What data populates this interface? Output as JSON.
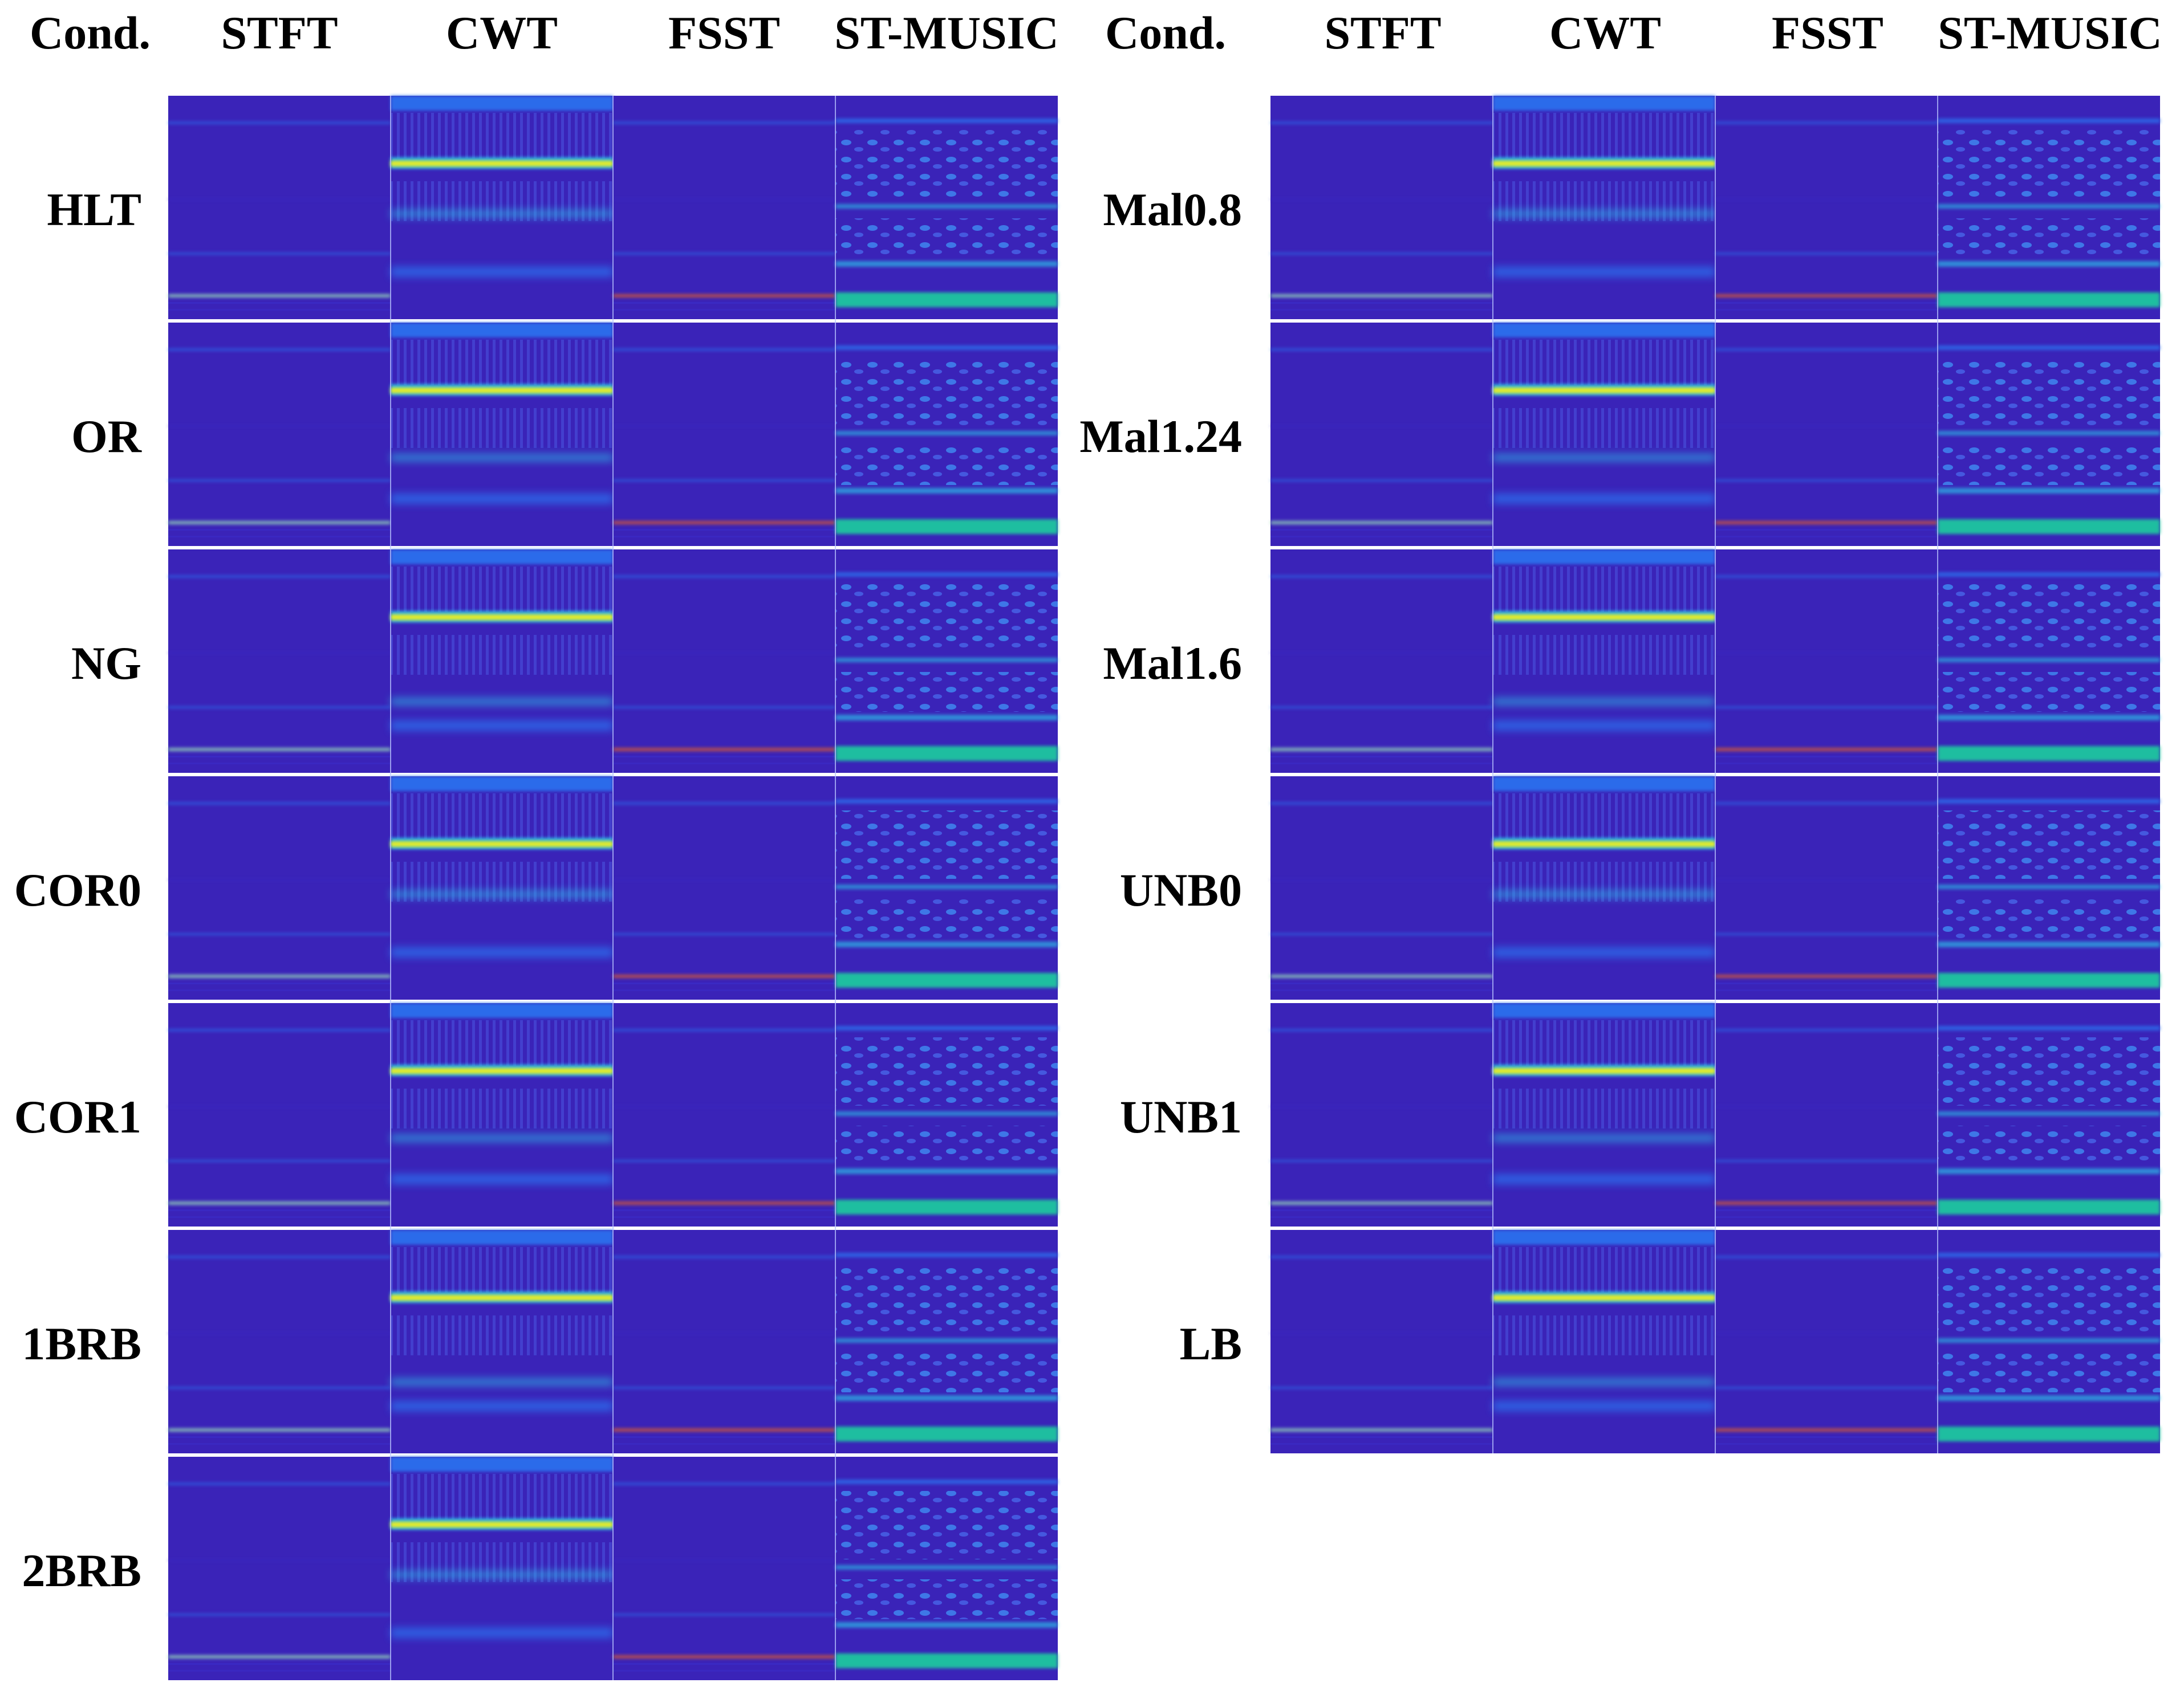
{
  "figure": {
    "left_panel": {
      "headers": [
        "Cond.",
        "STFT",
        "CWT",
        "FSST",
        "ST-MUSIC"
      ],
      "conditions": [
        "HLT",
        "OR",
        "NG",
        "COR0",
        "COR1",
        "1BRB",
        "2BRB"
      ]
    },
    "right_panel": {
      "headers": [
        "Cond.",
        "STFT",
        "CWT",
        "FSST",
        "ST-MUSIC"
      ],
      "conditions": [
        "Mal0.8",
        "Mal1.24",
        "Mal1.6",
        "UNB0",
        "UNB1",
        "LB"
      ]
    },
    "colormap": {
      "background": "#3a23b8",
      "low": "#3b2bc6",
      "mid": "#2a73f0",
      "high": "#29c5e8",
      "teal": "#1ccf9e",
      "peak": "#e6ec28",
      "red": "#c8543c"
    }
  }
}
